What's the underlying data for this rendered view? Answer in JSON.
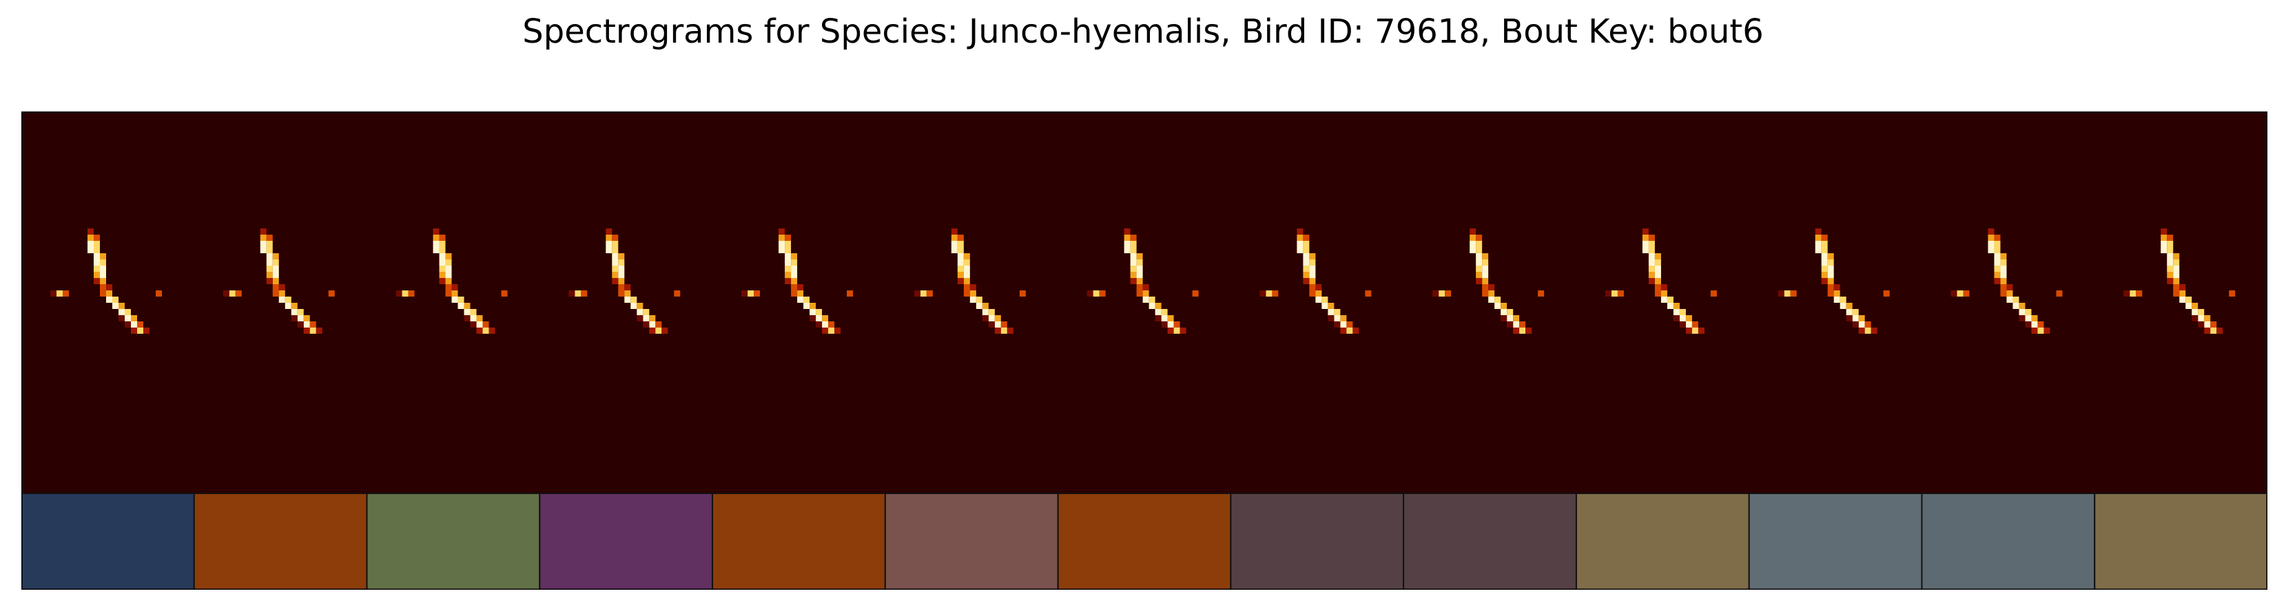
{
  "title": "Spectrograms for Species: Junco-hyemalis, Bird ID: 79618, Bout Key: bout6",
  "chart_data": {
    "type": "heatmap",
    "title": "Spectrograms for Species: Junco-hyemalis, Bird ID: 79618, Bout Key: bout6",
    "colormap": "afmhot",
    "background_color": "#2b0000",
    "syllable_count": 13,
    "segment_colors": [
      "#273a5a",
      "#8c3d0a",
      "#627147",
      "#613161",
      "#8c3d0a",
      "#7a524e",
      "#8c3d0a",
      "#554145",
      "#554145",
      "#7f6c48",
      "#616d74",
      "#5d6a71",
      "#7f6c48"
    ]
  }
}
